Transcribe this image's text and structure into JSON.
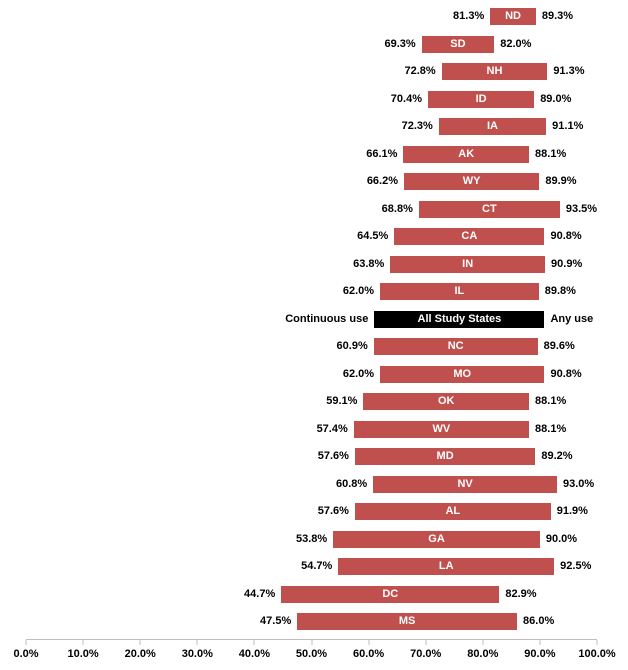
{
  "chart_data": {
    "type": "bar",
    "subtype": "horizontal_range_bar",
    "title": "",
    "xlabel": "",
    "ylabel": "",
    "xlim": [
      0,
      100
    ],
    "grid": false,
    "legend_position": "inline-center-row",
    "bar_color": "#C0504D",
    "all_states_bar_color": "#000000",
    "axis_line_color": "#BFBFBF",
    "series": [
      {
        "name": "Continuous use",
        "role": "bar_start"
      },
      {
        "name": "Any use",
        "role": "bar_end"
      }
    ],
    "x_tick_values": [
      0,
      10,
      20,
      30,
      40,
      50,
      60,
      70,
      80,
      90,
      100
    ],
    "x_tick_labels": [
      "0.0%",
      "10.0%",
      "20.0%",
      "30.0%",
      "40.0%",
      "50.0%",
      "60.0%",
      "70.0%",
      "80.0%",
      "90.0%",
      "100.0%"
    ],
    "rows": [
      {
        "kind": "state",
        "label": "ND",
        "continuous_use": 81.3,
        "any_use": 89.3,
        "left_label": "81.3%",
        "right_label": "89.3%"
      },
      {
        "kind": "state",
        "label": "SD",
        "continuous_use": 69.3,
        "any_use": 82.0,
        "left_label": "69.3%",
        "right_label": "82.0%"
      },
      {
        "kind": "state",
        "label": "NH",
        "continuous_use": 72.8,
        "any_use": 91.3,
        "left_label": "72.8%",
        "right_label": "91.3%"
      },
      {
        "kind": "state",
        "label": "ID",
        "continuous_use": 70.4,
        "any_use": 89.0,
        "left_label": "70.4%",
        "right_label": "89.0%"
      },
      {
        "kind": "state",
        "label": "IA",
        "continuous_use": 72.3,
        "any_use": 91.1,
        "left_label": "72.3%",
        "right_label": "91.1%"
      },
      {
        "kind": "state",
        "label": "AK",
        "continuous_use": 66.1,
        "any_use": 88.1,
        "left_label": "66.1%",
        "right_label": "88.1%"
      },
      {
        "kind": "state",
        "label": "WY",
        "continuous_use": 66.2,
        "any_use": 89.9,
        "left_label": "66.2%",
        "right_label": "89.9%"
      },
      {
        "kind": "state",
        "label": "CT",
        "continuous_use": 68.8,
        "any_use": 93.5,
        "left_label": "68.8%",
        "right_label": "93.5%"
      },
      {
        "kind": "state",
        "label": "CA",
        "continuous_use": 64.5,
        "any_use": 90.8,
        "left_label": "64.5%",
        "right_label": "90.8%"
      },
      {
        "kind": "state",
        "label": "IN",
        "continuous_use": 63.8,
        "any_use": 90.9,
        "left_label": "63.8%",
        "right_label": "90.9%"
      },
      {
        "kind": "state",
        "label": "IL",
        "continuous_use": 62.0,
        "any_use": 89.8,
        "left_label": "62.0%",
        "right_label": "89.8%"
      },
      {
        "kind": "all",
        "label": "All Study States",
        "bar_start_estimate": 61.0,
        "bar_end_estimate": 90.8,
        "left_label": "Continuous use",
        "right_label": "Any use"
      },
      {
        "kind": "state",
        "label": "NC",
        "continuous_use": 60.9,
        "any_use": 89.6,
        "left_label": "60.9%",
        "right_label": "89.6%"
      },
      {
        "kind": "state",
        "label": "MO",
        "continuous_use": 62.0,
        "any_use": 90.8,
        "left_label": "62.0%",
        "right_label": "90.8%"
      },
      {
        "kind": "state",
        "label": "OK",
        "continuous_use": 59.1,
        "any_use": 88.1,
        "left_label": "59.1%",
        "right_label": "88.1%"
      },
      {
        "kind": "state",
        "label": "WV",
        "continuous_use": 57.4,
        "any_use": 88.1,
        "left_label": "57.4%",
        "right_label": "88.1%"
      },
      {
        "kind": "state",
        "label": "MD",
        "continuous_use": 57.6,
        "any_use": 89.2,
        "left_label": "57.6%",
        "right_label": "89.2%"
      },
      {
        "kind": "state",
        "label": "NV",
        "continuous_use": 60.8,
        "any_use": 93.0,
        "left_label": "60.8%",
        "right_label": "93.0%"
      },
      {
        "kind": "state",
        "label": "AL",
        "continuous_use": 57.6,
        "any_use": 91.9,
        "left_label": "57.6%",
        "right_label": "91.9%"
      },
      {
        "kind": "state",
        "label": "GA",
        "continuous_use": 53.8,
        "any_use": 90.0,
        "left_label": "53.8%",
        "right_label": "90.0%"
      },
      {
        "kind": "state",
        "label": "LA",
        "continuous_use": 54.7,
        "any_use": 92.5,
        "left_label": "54.7%",
        "right_label": "92.5%"
      },
      {
        "kind": "state",
        "label": "DC",
        "continuous_use": 44.7,
        "any_use": 82.9,
        "left_label": "44.7%",
        "right_label": "82.9%"
      },
      {
        "kind": "state",
        "label": "MS",
        "continuous_use": 47.5,
        "any_use": 86.0,
        "left_label": "47.5%",
        "right_label": "86.0%"
      }
    ]
  }
}
